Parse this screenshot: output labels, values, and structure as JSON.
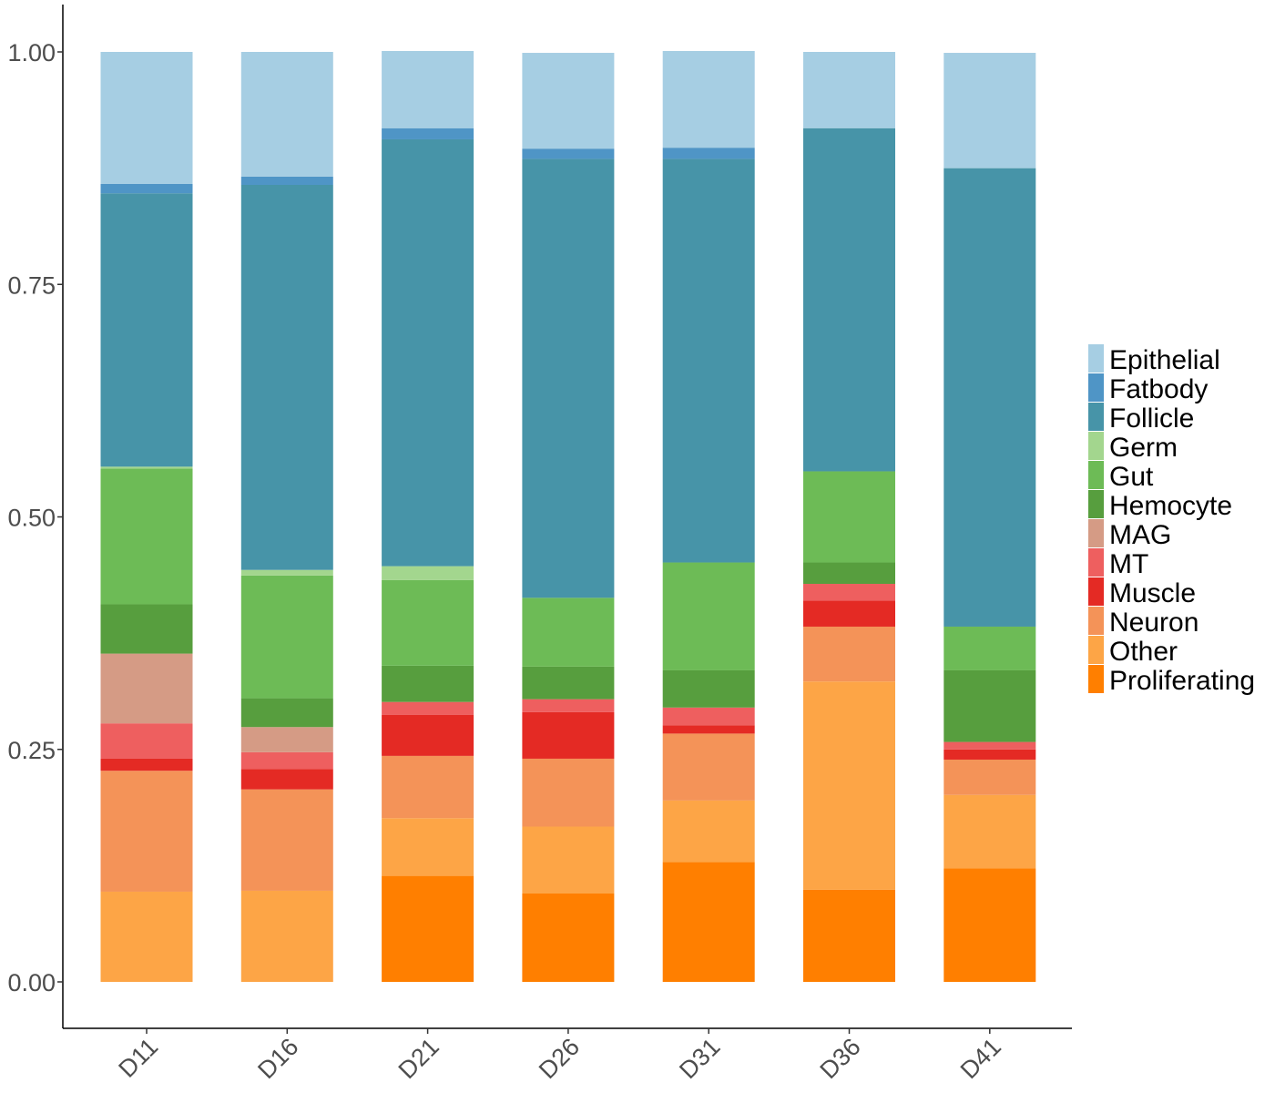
{
  "chart_data": {
    "type": "bar",
    "stacked": true,
    "title": "",
    "xlabel": "",
    "ylabel": "",
    "ylim": [
      0,
      1
    ],
    "yticks": [
      "0.00",
      "0.25",
      "0.50",
      "0.75",
      "1.00"
    ],
    "ytick_values": [
      0,
      0.25,
      0.5,
      0.75,
      1.0
    ],
    "grid": false,
    "legend_position": "right",
    "categories": [
      "D11",
      "D16",
      "D21",
      "D26",
      "D31",
      "D36",
      "D41"
    ],
    "series": [
      {
        "name": "Epithelial",
        "color": "#A6CEE3",
        "values": [
          0.142,
          0.134,
          0.083,
          0.103,
          0.104,
          0.082,
          0.124
        ]
      },
      {
        "name": "Fatbody",
        "color": "#4F95C6",
        "values": [
          0.01,
          0.009,
          0.012,
          0.011,
          0.012,
          0.0,
          0.0
        ]
      },
      {
        "name": "Follicle",
        "color": "#4794A8",
        "values": [
          0.294,
          0.414,
          0.459,
          0.472,
          0.434,
          0.369,
          0.493
        ]
      },
      {
        "name": "Germ",
        "color": "#A3D68E",
        "values": [
          0.002,
          0.006,
          0.015,
          0.0,
          0.0,
          0.0,
          0.0
        ]
      },
      {
        "name": "Gut",
        "color": "#6DBB56",
        "values": [
          0.146,
          0.132,
          0.092,
          0.074,
          0.116,
          0.098,
          0.047
        ]
      },
      {
        "name": "Hemocyte",
        "color": "#579E3E",
        "values": [
          0.053,
          0.031,
          0.039,
          0.035,
          0.04,
          0.023,
          0.077
        ]
      },
      {
        "name": "MAG",
        "color": "#D59B85",
        "values": [
          0.075,
          0.027,
          0.0,
          0.0,
          0.0,
          0.0,
          0.0
        ]
      },
      {
        "name": "MT",
        "color": "#EE5F5F",
        "values": [
          0.038,
          0.018,
          0.014,
          0.014,
          0.019,
          0.018,
          0.008
        ]
      },
      {
        "name": "Muscle",
        "color": "#E42A24",
        "values": [
          0.013,
          0.022,
          0.044,
          0.05,
          0.009,
          0.028,
          0.011
        ]
      },
      {
        "name": "Neuron",
        "color": "#F49358",
        "values": [
          0.13,
          0.109,
          0.067,
          0.073,
          0.072,
          0.059,
          0.038
        ]
      },
      {
        "name": "Other",
        "color": "#FDA546",
        "values": [
          0.097,
          0.098,
          0.062,
          0.072,
          0.066,
          0.224,
          0.079
        ]
      },
      {
        "name": "Proliferating",
        "color": "#FF7F00",
        "values": [
          0.0,
          0.0,
          0.114,
          0.095,
          0.129,
          0.099,
          0.122
        ]
      }
    ]
  }
}
